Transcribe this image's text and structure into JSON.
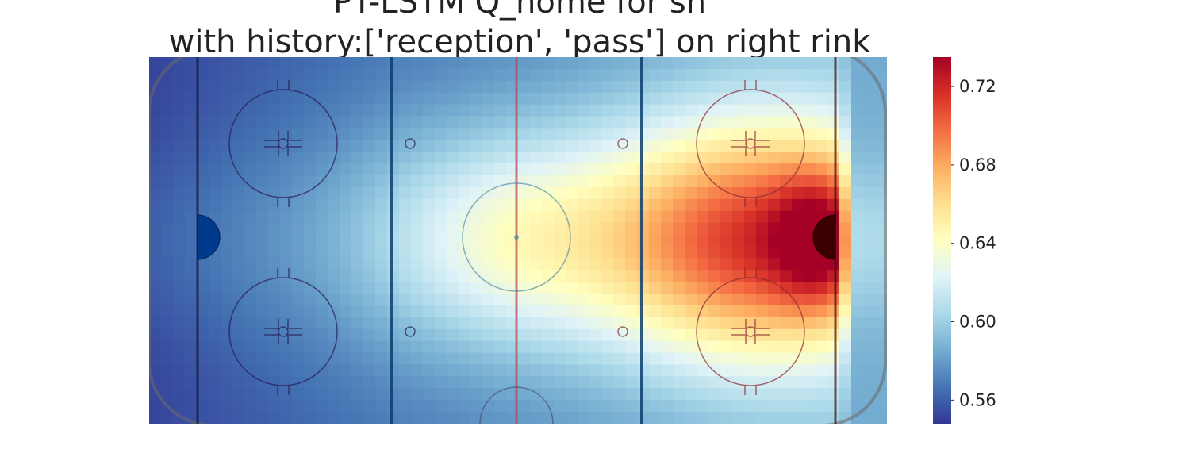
{
  "title_line1": "PT-LSTM Q_home for sh",
  "title_line2": "with history:['reception', 'pass'] on right rink",
  "chart_data": {
    "type": "heatmap",
    "title": "PT-LSTM Q_home for sh\nwith history:['reception', 'pass'] on right rink",
    "xlabel": "",
    "ylabel": "",
    "colormap": "RdYlBu_r",
    "colorbar": {
      "min": 0.548,
      "max": 0.735,
      "ticks": [
        0.56,
        0.6,
        0.64,
        0.68,
        0.72
      ],
      "tick_labels": [
        "0.56",
        "0.60",
        "0.64",
        "0.68",
        "0.72"
      ]
    },
    "grid": false,
    "background": "hockey rink (right rink)",
    "approximate_values": {
      "left_defensive_corner": 0.555,
      "left_zone_center": 0.585,
      "center_ice": 0.625,
      "right_faceoff_circles": 0.69,
      "right_goal_crease": 0.735,
      "right_boards_behind_goal": 0.59
    }
  }
}
